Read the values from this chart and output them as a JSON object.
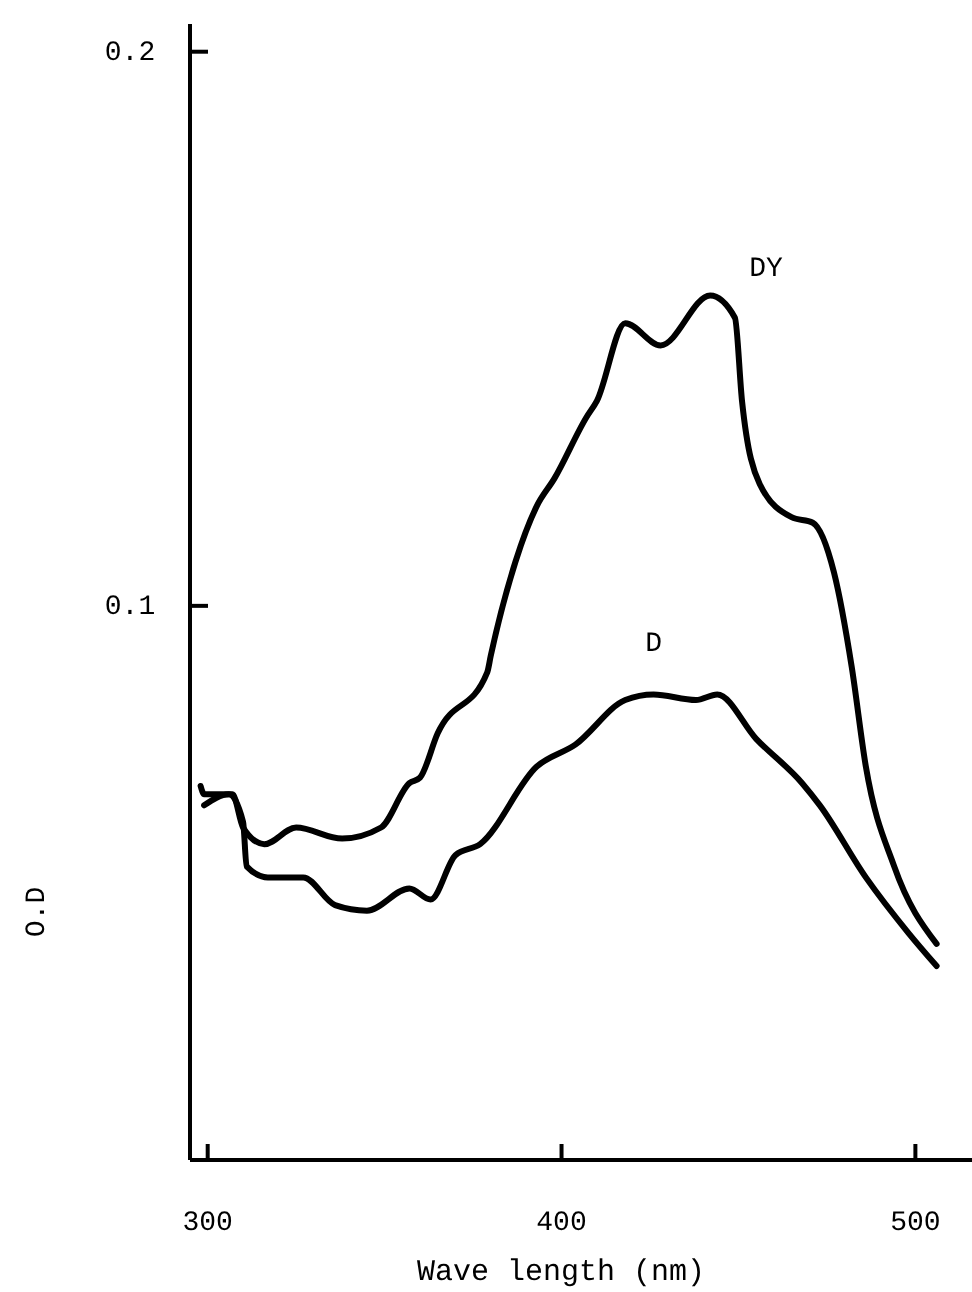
{
  "chart_data": {
    "type": "line",
    "xlabel": "Wave length (nm)",
    "ylabel": "O.D",
    "xlim": [
      295,
      516
    ],
    "ylim": [
      0,
      0.205
    ],
    "xticks": [
      300,
      400,
      500
    ],
    "yticks": [
      0.1,
      0.2
    ],
    "grid": false,
    "marker": "none",
    "line_style": "solid",
    "series": [
      {
        "name": "DY",
        "color": "#000000",
        "x": [
          298,
          299,
          307,
          310,
          316,
          325,
          338,
          349,
          357,
          360,
          365,
          379,
          380,
          387,
          393,
          398,
          407,
          410,
          418,
          428,
          442,
          449,
          451,
          456,
          465,
          471,
          477,
          482,
          486,
          494,
          506
        ],
        "values": [
          0.0675,
          0.066,
          0.066,
          0.06,
          0.057,
          0.06,
          0.058,
          0.06,
          0.068,
          0.069,
          0.077,
          0.088,
          0.091,
          0.108,
          0.118,
          0.123,
          0.134,
          0.137,
          0.151,
          0.147,
          0.156,
          0.152,
          0.137,
          0.122,
          0.116,
          0.115,
          0.106,
          0.089,
          0.071,
          0.053,
          0.039
        ]
      },
      {
        "name": "D",
        "color": "#000000",
        "x": [
          299,
          306,
          310,
          311,
          317,
          327,
          336,
          345,
          357,
          363,
          370,
          377,
          393,
          404,
          418,
          426,
          438,
          444,
          455,
          468,
          473,
          486,
          498,
          506
        ],
        "values": [
          0.064,
          0.066,
          0.061,
          0.053,
          0.051,
          0.051,
          0.046,
          0.045,
          0.049,
          0.047,
          0.055,
          0.057,
          0.071,
          0.075,
          0.083,
          0.084,
          0.083,
          0.084,
          0.076,
          0.068,
          0.064,
          0.051,
          0.041,
          0.035
        ]
      }
    ]
  }
}
